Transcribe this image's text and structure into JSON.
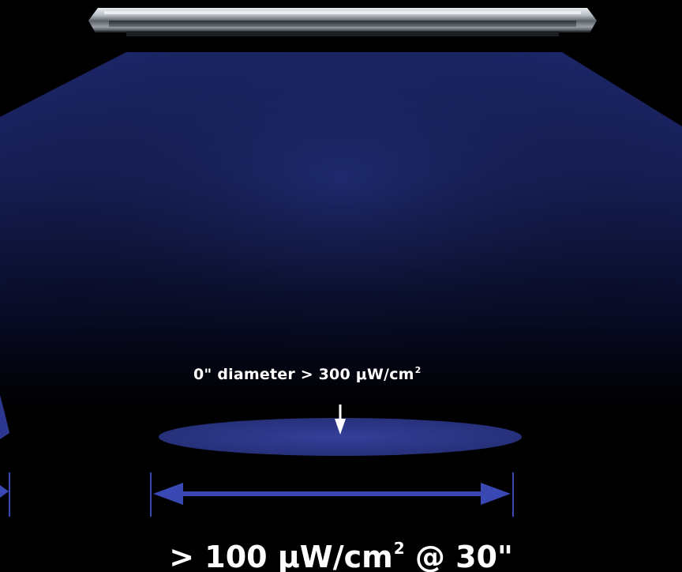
{
  "spot": {
    "prefix": "0\" diameter > 300 μW/cm",
    "exponent": "2"
  },
  "headline": {
    "prefix": "> 100 μW/cm",
    "exponent": "2",
    "suffix": " @ 30\""
  },
  "icons": {
    "fixture": "uv-light-fixture",
    "beam": "light-beam-cone",
    "spot": "center-spot-ellipse",
    "pointer": "down-arrow",
    "span": "double-headed-dimension-arrow"
  },
  "colors": {
    "background": "#000000",
    "beam_top": "#1f2a72",
    "beam_bottom": "#000000",
    "spot": "#2e3a8a",
    "arrow": "#3a48b4",
    "text": "#ffffff"
  }
}
